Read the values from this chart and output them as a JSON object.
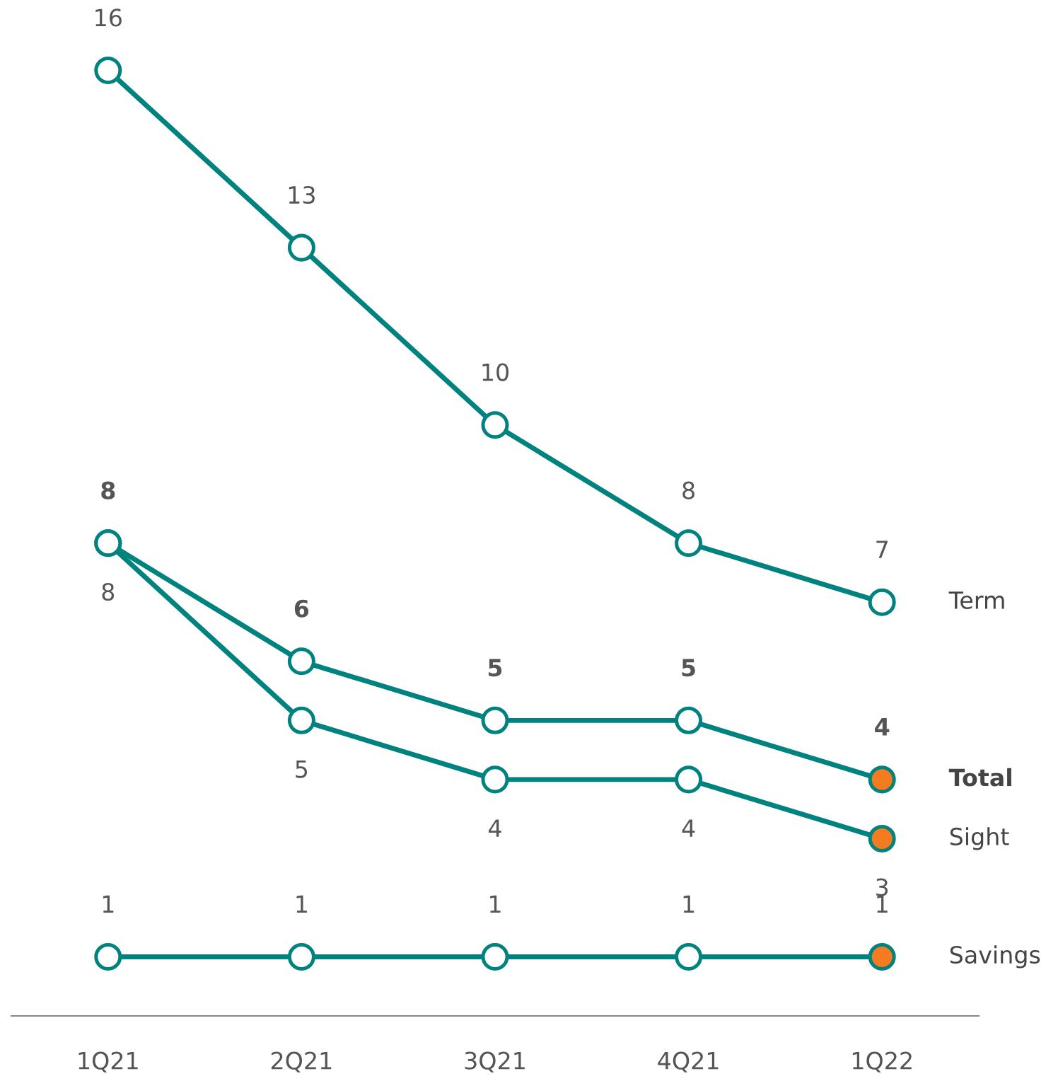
{
  "chart_data": {
    "type": "line",
    "categories": [
      "1Q21",
      "2Q21",
      "3Q21",
      "4Q21",
      "1Q22"
    ],
    "data_labels": true,
    "marker": "circle",
    "legend": false,
    "tick_labels": "x",
    "grid": false,
    "series": [
      {
        "name": "Term",
        "color": "#00827f",
        "colors": [
          "#ffffff",
          "#ffffff",
          "#ffffff",
          "#ffffff",
          "#ffffff"
        ],
        "values": [
          16,
          13,
          10,
          8,
          7
        ]
      },
      {
        "name": "Total",
        "color": "#00827f",
        "colors": [
          "#ffffff",
          "#ffffff",
          "#ffffff",
          "#ffffff",
          "#f47b20"
        ],
        "values": [
          8,
          6,
          5,
          5,
          4
        ]
      },
      {
        "name": "Sight",
        "color": "#00827f",
        "colors": [
          "#ffffff",
          "#ffffff",
          "#ffffff",
          "#ffffff",
          "#f47b20"
        ],
        "values": [
          8,
          5,
          4,
          4,
          3
        ]
      },
      {
        "name": "Savings",
        "color": "#00827f",
        "colors": [
          "#ffffff",
          "#ffffff",
          "#ffffff",
          "#ffffff",
          "#f47b20"
        ],
        "values": [
          1,
          1,
          1,
          1,
          1
        ]
      }
    ]
  }
}
